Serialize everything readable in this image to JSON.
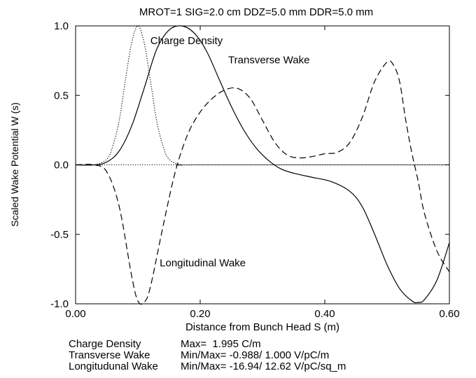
{
  "chart_data": {
    "type": "line",
    "title": "MROT=1  SIG=2.0 cm  DDZ=5.0 mm  DDR=5.0 mm",
    "xlabel": "Distance from Bunch Head S (m)",
    "ylabel": "Scaled Wake Potential W (s)",
    "xlim": [
      0.0,
      0.6
    ],
    "ylim": [
      -1.0,
      1.0
    ],
    "xticks": [
      "0.00",
      "0.20",
      "0.40",
      "0.60"
    ],
    "yticks": [
      "-1.0",
      "-0.5",
      "0.0",
      "0.5",
      "1.0"
    ],
    "grid": false,
    "zero_line": true,
    "series": [
      {
        "name": "Charge Density",
        "style": "dotted",
        "x": [
          0.0,
          0.03,
          0.05,
          0.06,
          0.07,
          0.08,
          0.09,
          0.1,
          0.11,
          0.12,
          0.13,
          0.14,
          0.15,
          0.17,
          0.2,
          0.6
        ],
        "y": [
          0.0,
          0.0,
          0.04,
          0.14,
          0.32,
          0.61,
          0.88,
          1.0,
          0.88,
          0.61,
          0.32,
          0.14,
          0.04,
          0.0,
          0.0,
          0.0
        ]
      },
      {
        "name": "Transverse Wake",
        "style": "solid",
        "x": [
          0.0,
          0.03,
          0.05,
          0.07,
          0.09,
          0.11,
          0.13,
          0.15,
          0.17,
          0.19,
          0.21,
          0.23,
          0.25,
          0.27,
          0.29,
          0.31,
          0.33,
          0.35,
          0.38,
          0.41,
          0.44,
          0.46,
          0.48,
          0.5,
          0.52,
          0.54,
          0.55,
          0.56,
          0.58,
          0.6
        ],
        "y": [
          0.0,
          0.0,
          0.02,
          0.1,
          0.28,
          0.55,
          0.83,
          0.97,
          1.0,
          0.95,
          0.82,
          0.62,
          0.42,
          0.25,
          0.12,
          0.03,
          -0.03,
          -0.06,
          -0.09,
          -0.12,
          -0.19,
          -0.3,
          -0.5,
          -0.72,
          -0.89,
          -0.98,
          -0.99,
          -0.97,
          -0.83,
          -0.56
        ]
      },
      {
        "name": "Longitudinal Wake",
        "style": "dashed",
        "x": [
          0.0,
          0.03,
          0.05,
          0.07,
          0.09,
          0.1,
          0.11,
          0.12,
          0.14,
          0.16,
          0.18,
          0.2,
          0.22,
          0.24,
          0.26,
          0.28,
          0.3,
          0.32,
          0.34,
          0.36,
          0.38,
          0.4,
          0.42,
          0.44,
          0.46,
          0.48,
          0.5,
          0.51,
          0.52,
          0.53,
          0.54,
          0.55,
          0.56,
          0.58,
          0.6
        ],
        "y": [
          0.0,
          0.0,
          -0.05,
          -0.3,
          -0.8,
          -0.98,
          -0.99,
          -0.88,
          -0.45,
          -0.05,
          0.22,
          0.38,
          0.48,
          0.54,
          0.55,
          0.48,
          0.32,
          0.16,
          0.07,
          0.05,
          0.06,
          0.08,
          0.09,
          0.16,
          0.34,
          0.6,
          0.74,
          0.72,
          0.6,
          0.32,
          0.08,
          -0.12,
          -0.35,
          -0.62,
          -0.77
        ]
      }
    ],
    "annotations": [
      {
        "text": "Charge Density",
        "x": 0.12,
        "y": 0.87
      },
      {
        "text": "Transverse Wake",
        "x": 0.245,
        "y": 0.73
      },
      {
        "text": "Longitudinal Wake",
        "x": 0.135,
        "y": -0.73
      }
    ]
  },
  "footer": {
    "rows": [
      {
        "label": "Charge Density",
        "value": "Max=  1.995 C/m"
      },
      {
        "label": "Transverse Wake",
        "value": "Min/Max= -0.988/ 1.000 V/pC/m"
      },
      {
        "label": "Longitudunal Wake",
        "value": "Min/Max= -16.94/ 12.62 V/pC/sq_m"
      }
    ]
  }
}
